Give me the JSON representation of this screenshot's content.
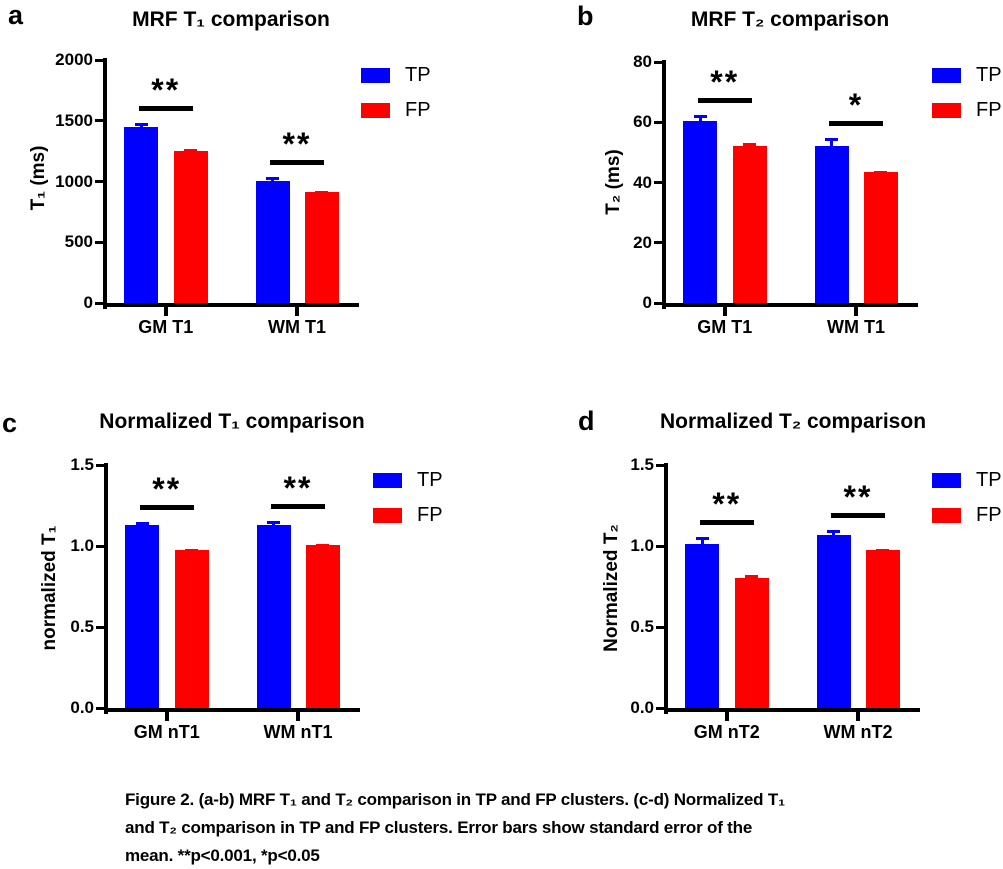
{
  "figure": {
    "caption": "Figure 2. (a-b) MRF T₁ and T₂ comparison in TP and FP clusters. (c-d) Normalized T₁\nand T₂ comparison in TP and FP clusters. Error bars show standard error of the\nmean. **p<0.001, *p<0.05"
  },
  "palette": {
    "tp_blue": "#0000ff",
    "fp_red": "#ff0000",
    "axis": "#000000",
    "background": "#ffffff"
  },
  "chart_data": [
    {
      "id": "a",
      "panel_label": "a",
      "type": "bar",
      "title": "MRF T₁ comparison",
      "ylabel": "T₁ (ms)",
      "xlabel": "",
      "ylim": [
        0,
        2000
      ],
      "yticks": [
        "0",
        "500",
        "1000",
        "1500",
        "2000"
      ],
      "categories": [
        "GM T1",
        "WM T1"
      ],
      "series": [
        {
          "name": "TP",
          "color": "#0000ff",
          "values": [
            1445,
            1005
          ],
          "errors": [
            38,
            30
          ]
        },
        {
          "name": "FP",
          "color": "#ff0000",
          "values": [
            1255,
            915
          ],
          "errors": [
            15,
            8
          ]
        }
      ],
      "significance": [
        "**",
        "**"
      ],
      "legend_position": "top-right",
      "grid": false
    },
    {
      "id": "b",
      "panel_label": "b",
      "type": "bar",
      "title": "MRF T₂ comparison",
      "ylabel": "T₂ (ms)",
      "xlabel": "",
      "ylim": [
        0,
        80
      ],
      "yticks": [
        "0",
        "20",
        "40",
        "60",
        "80"
      ],
      "categories": [
        "GM T1",
        "WM T1"
      ],
      "series": [
        {
          "name": "TP",
          "color": "#0000ff",
          "values": [
            60.5,
            52
          ],
          "errors": [
            2,
            2.8
          ]
        },
        {
          "name": "FP",
          "color": "#ff0000",
          "values": [
            52,
            43.5
          ],
          "errors": [
            1,
            0.4
          ]
        }
      ],
      "significance": [
        "**",
        "*"
      ],
      "legend_position": "top-right",
      "grid": false
    },
    {
      "id": "c",
      "panel_label": "c",
      "type": "bar",
      "title": "Normalized T₁ comparison",
      "ylabel": "normalized T₁",
      "xlabel": "",
      "ylim": [
        0,
        1.5
      ],
      "yticks": [
        "0.0",
        "0.5",
        "1.0",
        "1.5"
      ],
      "categories": [
        "GM nT1",
        "WM nT1"
      ],
      "series": [
        {
          "name": "TP",
          "color": "#0000ff",
          "values": [
            1.13,
            1.13
          ],
          "errors": [
            0.02,
            0.025
          ]
        },
        {
          "name": "FP",
          "color": "#ff0000",
          "values": [
            0.975,
            1.005
          ],
          "errors": [
            0.008,
            0.008
          ]
        }
      ],
      "significance": [
        "**",
        "**"
      ],
      "legend_position": "top-right",
      "grid": false
    },
    {
      "id": "d",
      "panel_label": "d",
      "type": "bar",
      "title": "Normalized T₂ comparison",
      "ylabel": "Normalized T₂",
      "xlabel": "",
      "ylim": [
        0,
        1.5
      ],
      "yticks": [
        "0.0",
        "0.5",
        "1.0",
        "1.5"
      ],
      "categories": [
        "GM nT2",
        "WM nT2"
      ],
      "series": [
        {
          "name": "TP",
          "color": "#0000ff",
          "values": [
            1.01,
            1.065
          ],
          "errors": [
            0.045,
            0.035
          ]
        },
        {
          "name": "FP",
          "color": "#ff0000",
          "values": [
            0.805,
            0.975
          ],
          "errors": [
            0.015,
            0.008
          ]
        }
      ],
      "significance": [
        "**",
        "**"
      ],
      "legend_position": "top-right",
      "grid": false
    }
  ]
}
